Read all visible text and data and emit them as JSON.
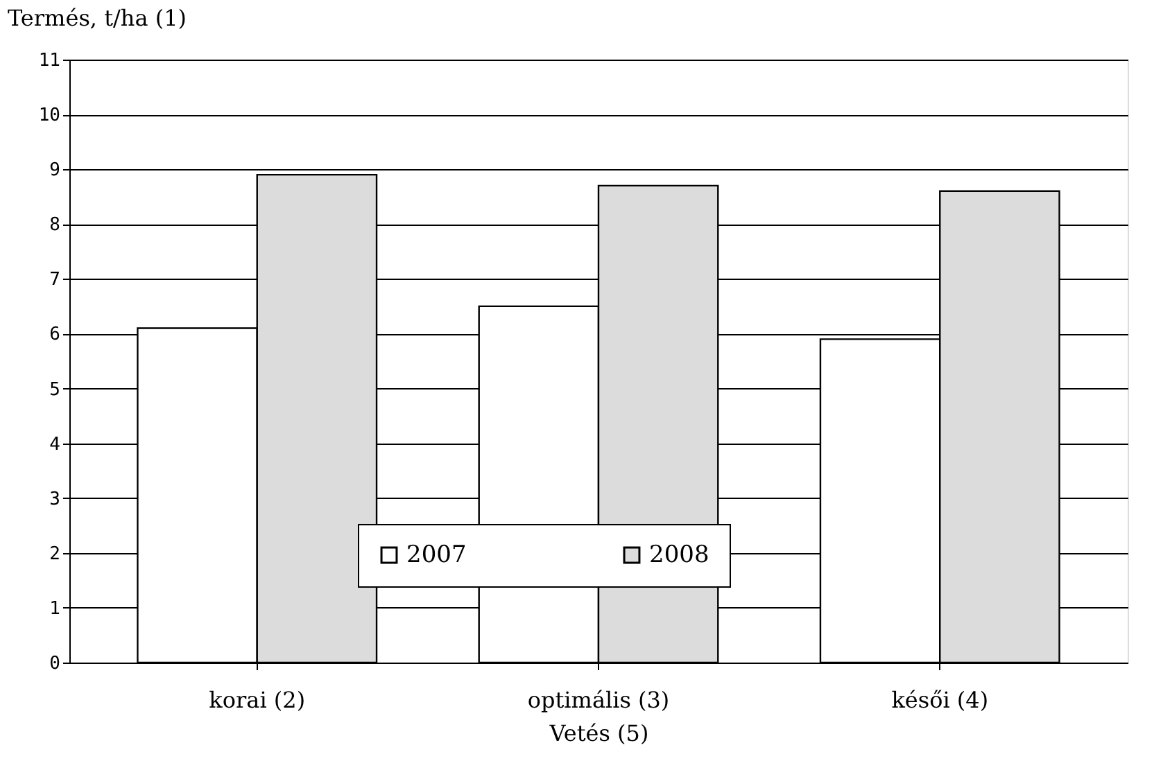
{
  "chart_data": {
    "type": "bar",
    "xlabel": "Vetés (5)",
    "ylabel": "Termés, t/ha (1)",
    "categories": [
      "korai (2)",
      "optimális (3)",
      "késői (4)"
    ],
    "series": [
      {
        "name": "2007",
        "color": "#ffffff",
        "values": [
          6.1,
          6.5,
          5.9
        ]
      },
      {
        "name": "2008",
        "color": "#dcdcdc",
        "values": [
          8.9,
          8.7,
          8.6
        ]
      }
    ],
    "ylim": [
      0,
      11
    ],
    "yticks": [
      0,
      1,
      2,
      3,
      4,
      5,
      6,
      7,
      8,
      9,
      10,
      11
    ],
    "grid": "y",
    "legend": "bottom"
  }
}
